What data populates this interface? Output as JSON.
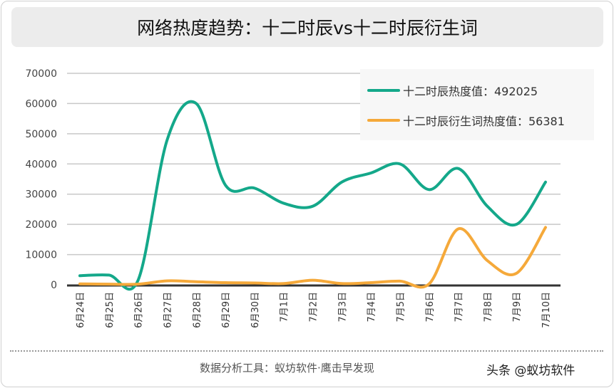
{
  "title": "网络热度趋势：十二时辰vs十二时辰衍生词",
  "chart_data": {
    "type": "line",
    "title": "网络热度趋势：十二时辰vs十二时辰衍生词",
    "categories": [
      "6月24日",
      "6月25日",
      "6月26日",
      "6月27日",
      "6月28日",
      "6月29日",
      "6月30日",
      "7月1日",
      "7月2日",
      "7月3日",
      "7月4日",
      "7月5日",
      "7月6日",
      "7月7日",
      "7月8日",
      "7月9日",
      "7月10日"
    ],
    "ylim": [
      0,
      70000
    ],
    "yticks": [
      "0",
      "10000",
      "20000",
      "30000",
      "40000",
      "50000",
      "60000",
      "70000"
    ],
    "grid": true,
    "legend_position": "top-right",
    "series": [
      {
        "name": "十二时辰热度值：492025",
        "color": "#14a88a",
        "values": [
          3000,
          3200,
          1500,
          48000,
          60000,
          33000,
          32000,
          27000,
          26000,
          34000,
          37000,
          40000,
          31500,
          38500,
          26000,
          20000,
          34000
        ]
      },
      {
        "name": "十二时辰衍生词热度值：56381",
        "color": "#f5a93a",
        "values": [
          300,
          200,
          200,
          1300,
          1000,
          700,
          600,
          400,
          1500,
          400,
          700,
          1200,
          300,
          18500,
          8000,
          3800,
          19000
        ]
      }
    ]
  },
  "footer": "数据分析工具：蚁坊软件·鹰击早发现",
  "watermark": "头条 @蚁坊软件"
}
